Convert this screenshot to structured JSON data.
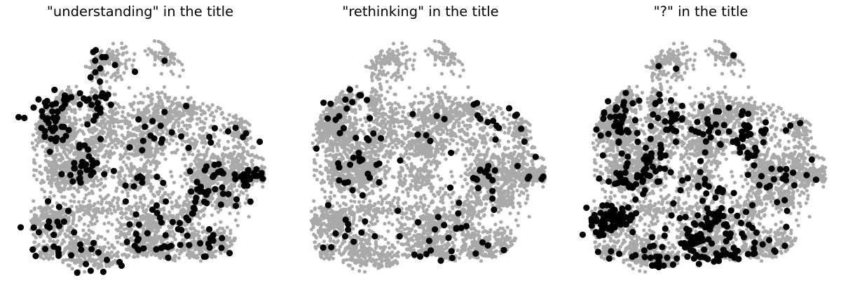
{
  "colors": {
    "background_points": "#a9a9a9",
    "highlight_points": "#000000"
  },
  "chart_data": [
    {
      "type": "scatter",
      "title": "\"understanding\" in the title",
      "axes_visible": false,
      "grid": false,
      "seed": 11,
      "x_range": [
        -1,
        1
      ],
      "y_range": [
        -1,
        1
      ],
      "series": [
        {
          "role": "background",
          "color": "#a9a9a9",
          "count": 4500
        },
        {
          "role": "highlight",
          "color": "#000000",
          "count": 280
        }
      ]
    },
    {
      "type": "scatter",
      "title": "\"rethinking\" in the title",
      "axes_visible": false,
      "grid": false,
      "seed": 29,
      "x_range": [
        -1,
        1
      ],
      "y_range": [
        -1,
        1
      ],
      "series": [
        {
          "role": "background",
          "color": "#a9a9a9",
          "count": 4500
        },
        {
          "role": "highlight",
          "color": "#000000",
          "count": 120
        }
      ]
    },
    {
      "type": "scatter",
      "title": "\"?\" in the title",
      "axes_visible": false,
      "grid": false,
      "seed": 47,
      "x_range": [
        -1,
        1
      ],
      "y_range": [
        -1,
        1
      ],
      "series": [
        {
          "role": "background",
          "color": "#a9a9a9",
          "count": 4500
        },
        {
          "role": "highlight",
          "color": "#000000",
          "count": 430
        }
      ]
    }
  ]
}
